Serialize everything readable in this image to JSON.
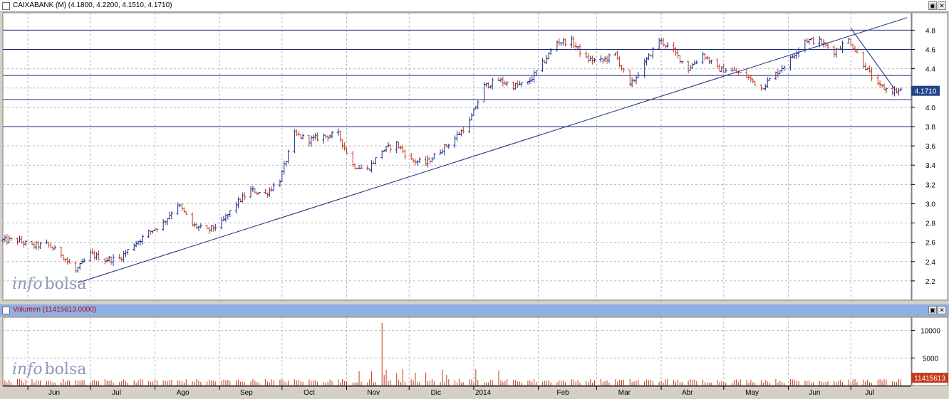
{
  "price_panel": {
    "title": "CAIXABANK (M) (4.1800, 4.2200, 4.1510, 4.1710)",
    "last_label": "4.1710",
    "watermark": [
      "info",
      "bolsa"
    ]
  },
  "volume_panel": {
    "title": "Volumen (11415613.0000)",
    "last_label": "11415613",
    "watermark": [
      "info",
      "bolsa"
    ]
  },
  "window_buttons": [
    "▣",
    "✕"
  ],
  "colors": {
    "up": "#1a2a8a",
    "down": "#c23a1a",
    "trend": "#1a2a7a",
    "volume": "#c23a1a",
    "accent": "#22448a"
  },
  "chart_data": [
    {
      "type": "line",
      "title": "CAIXABANK (M)",
      "x_tick_labels": [
        "Jun",
        "Jul",
        "Ago",
        "Sep",
        "Oct",
        "Nov",
        "Dic",
        "2014",
        "Feb",
        "Mar",
        "Abr",
        "May",
        "Jun",
        "Jul"
      ],
      "y_ticks": [
        2.2,
        2.4,
        2.6,
        2.8,
        3.0,
        3.2,
        3.4,
        3.6,
        3.8,
        4.0,
        4.2,
        4.4,
        4.6,
        4.8
      ],
      "y_tick_labels": [
        "2.2",
        "2.4",
        "2.6",
        "2.8",
        "3.0",
        "3.2",
        "3.4",
        "3.6",
        "3.8",
        "4.0",
        "4.2",
        "4.4",
        "4.6",
        "4.8"
      ],
      "ylim": [
        2.0,
        4.98
      ],
      "horizontal_levels": [
        4.8,
        4.6,
        4.33,
        4.08,
        3.8
      ],
      "trendlines": [
        {
          "from": [
            "2013-06-25",
            2.18
          ],
          "to": [
            "2014-07-28",
            4.93
          ]
        },
        {
          "from": [
            "2014-07-01",
            4.82
          ],
          "to": [
            "2014-07-22",
            4.19
          ]
        }
      ],
      "series": [
        {
          "x": [
            "2013-05-27",
            "2013-06-03",
            "2013-06-10",
            "2013-06-17",
            "2013-06-24",
            "2013-07-01",
            "2013-07-08",
            "2013-07-15",
            "2013-07-22",
            "2013-07-29",
            "2013-08-05",
            "2013-08-12",
            "2013-08-19",
            "2013-08-26",
            "2013-09-02",
            "2013-09-09",
            "2013-09-16",
            "2013-09-23",
            "2013-09-30",
            "2013-10-07",
            "2013-10-14",
            "2013-10-21",
            "2013-10-28",
            "2013-11-04",
            "2013-11-11",
            "2013-11-18",
            "2013-11-25",
            "2013-12-02",
            "2013-12-09",
            "2013-12-16",
            "2013-12-23",
            "2013-12-30",
            "2014-01-06",
            "2014-01-13",
            "2014-01-20",
            "2014-01-27",
            "2014-02-03",
            "2014-02-10",
            "2014-02-17",
            "2014-02-24",
            "2014-03-03",
            "2014-03-10",
            "2014-03-17",
            "2014-03-24",
            "2014-03-31",
            "2014-04-07",
            "2014-04-14",
            "2014-04-21",
            "2014-04-28",
            "2014-05-05",
            "2014-05-12",
            "2014-05-19",
            "2014-05-26",
            "2014-06-02",
            "2014-06-09",
            "2014-06-16",
            "2014-06-23",
            "2014-06-30",
            "2014-07-07",
            "2014-07-14",
            "2014-07-21"
          ],
          "values": [
            2.62,
            2.56,
            2.58,
            2.48,
            2.3,
            2.48,
            2.42,
            2.43,
            2.58,
            2.7,
            2.8,
            3.0,
            2.78,
            2.72,
            2.8,
            3.0,
            3.14,
            3.1,
            3.25,
            3.72,
            3.66,
            3.7,
            3.72,
            3.4,
            3.35,
            3.55,
            3.62,
            3.45,
            3.42,
            3.55,
            3.68,
            3.85,
            4.22,
            4.28,
            4.22,
            4.25,
            4.45,
            4.68,
            4.68,
            4.5,
            4.48,
            4.55,
            4.22,
            4.45,
            4.7,
            4.58,
            4.4,
            4.55,
            4.4,
            4.38,
            4.32,
            4.2,
            4.35,
            4.5,
            4.7,
            4.68,
            4.58,
            4.7,
            4.45,
            4.22,
            4.17
          ]
        }
      ]
    },
    {
      "type": "bar",
      "title": "Volumen",
      "x_tick_labels": [
        "Jun",
        "Jul",
        "Ago",
        "Sep",
        "Oct",
        "Nov",
        "Dic",
        "2014",
        "Feb",
        "Mar",
        "Abr",
        "May",
        "Jun",
        "Jul"
      ],
      "y_ticks": [
        5000,
        10000
      ],
      "y_tick_labels": [
        "5000",
        "10000"
      ],
      "ylim": [
        0,
        12400
      ],
      "peaks": [
        {
          "date": "2013-11-18",
          "value": 11400
        },
        {
          "date": "2013-11-13",
          "value": 2600
        },
        {
          "date": "2013-11-28",
          "value": 3000
        }
      ]
    }
  ]
}
